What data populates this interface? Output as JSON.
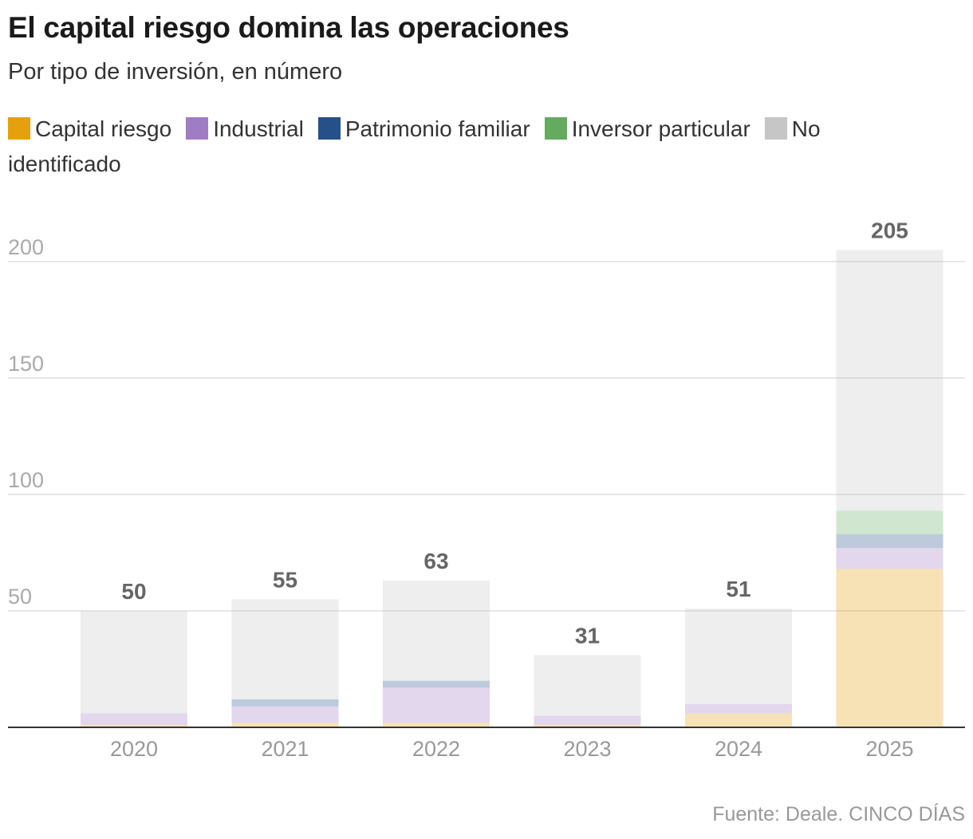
{
  "header": {
    "title": "El capital riesgo domina las operaciones",
    "subtitle": "Por tipo de inversión, en número"
  },
  "footer": {
    "source": "Fuente: Deale. CINCO DÍAS"
  },
  "chart_data": {
    "type": "bar",
    "stacked": true,
    "title": "El capital riesgo domina las operaciones",
    "subtitle": "Por tipo de inversión, en número",
    "categories": [
      "2020",
      "2021",
      "2022",
      "2023",
      "2024",
      "2025"
    ],
    "series": [
      {
        "name": "Capital riesgo",
        "color": "#e5a00d",
        "values": [
          1,
          2,
          2,
          1,
          6,
          68
        ]
      },
      {
        "name": "Industrial",
        "color": "#a07cc5",
        "values": [
          5,
          7,
          15,
          4,
          4,
          9
        ]
      },
      {
        "name": "Patrimonio familiar",
        "color": "#25508a",
        "values": [
          0,
          3,
          3,
          0,
          0,
          6
        ]
      },
      {
        "name": "Inversor particular",
        "color": "#63ab5f",
        "values": [
          0,
          0,
          0,
          0,
          0,
          10
        ]
      },
      {
        "name": "No identificado",
        "color": "#c6c6c6",
        "values": [
          44,
          43,
          43,
          26,
          41,
          112
        ]
      }
    ],
    "totals": [
      50,
      55,
      63,
      31,
      51,
      205
    ],
    "y_ticks": [
      50,
      100,
      150,
      200
    ],
    "ylim": [
      0,
      210
    ],
    "xlabel": "",
    "ylabel": "",
    "grid": true,
    "legend_position": "top"
  }
}
